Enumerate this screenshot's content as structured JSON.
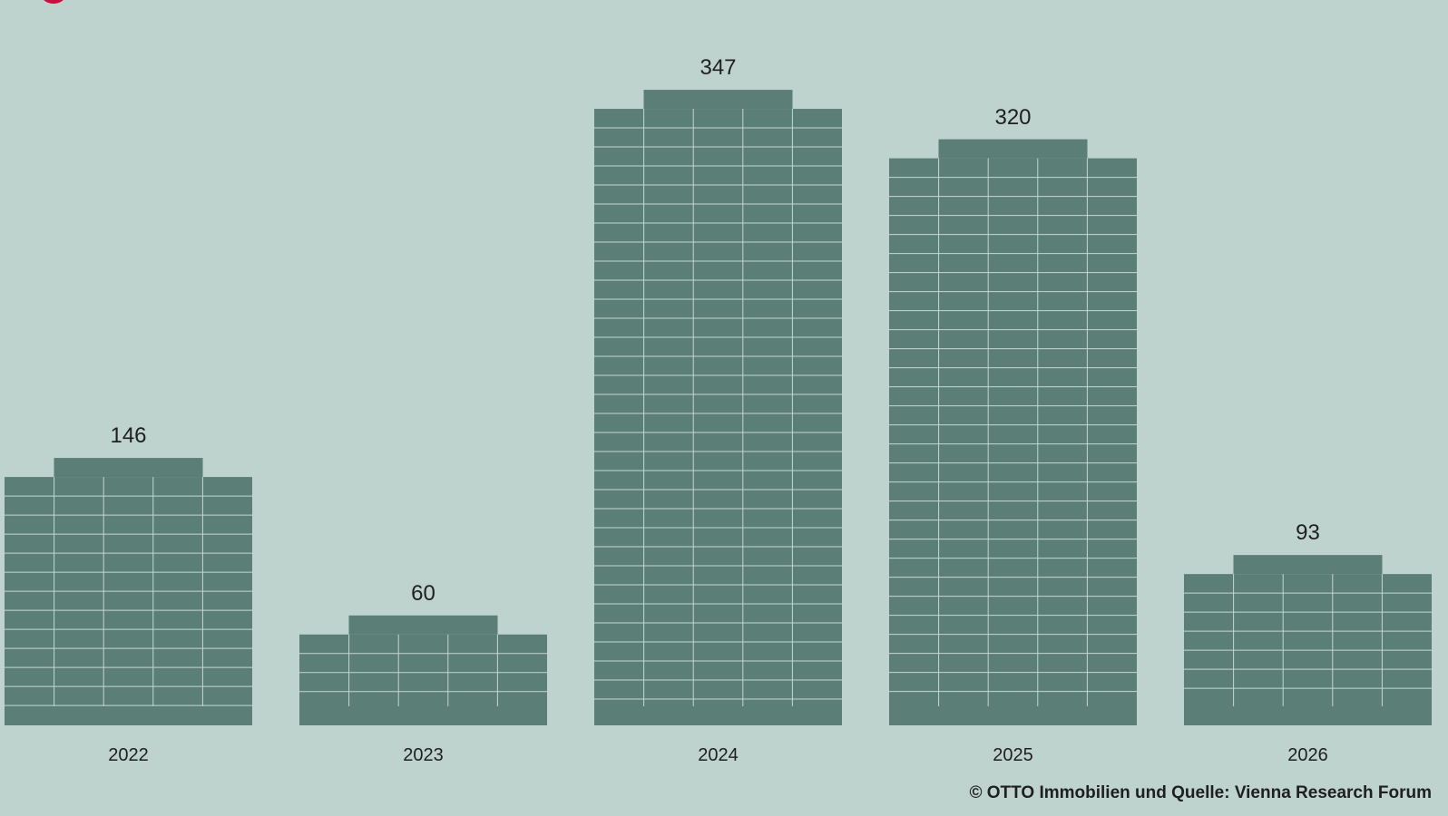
{
  "chart_data": {
    "type": "bar",
    "categories": [
      "2022",
      "2023",
      "2024",
      "2025",
      "2026"
    ],
    "values": [
      146,
      60,
      347,
      320,
      93
    ],
    "title": "",
    "xlabel": "",
    "ylabel": "",
    "data_labels": [
      "146",
      "60",
      "347",
      "320",
      "93"
    ],
    "grid": false,
    "bar_color": "#5b7f76",
    "window_line_color": "#c5d6d2",
    "background": "#bed2ce"
  },
  "brand": {
    "accent_color": "#c8103f"
  },
  "source": "© OTTO Immobilien und Quelle: Vienna Research Forum"
}
